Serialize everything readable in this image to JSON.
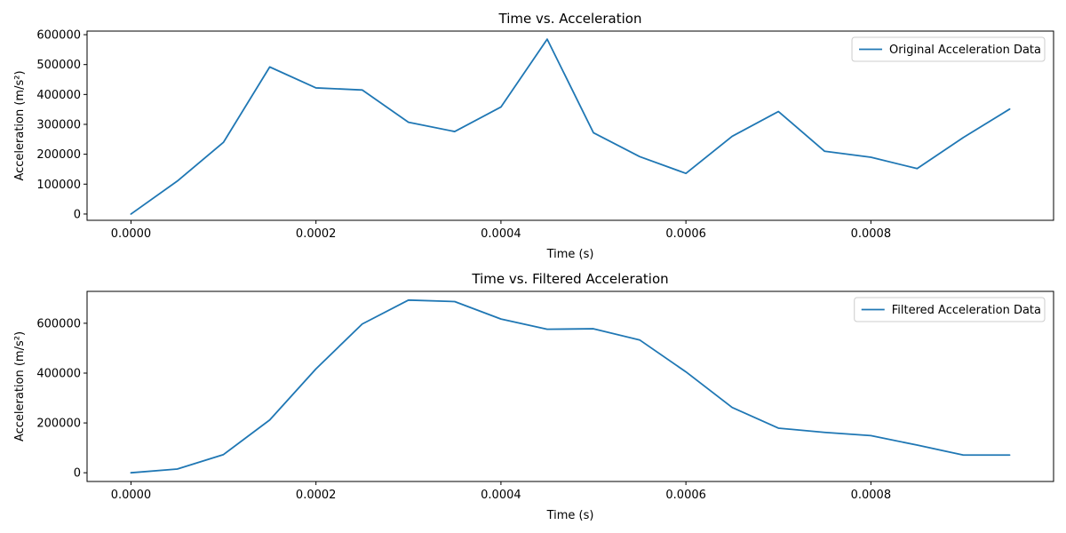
{
  "chart_data": [
    {
      "type": "line",
      "title": "Time vs. Acceleration",
      "xlabel": "Time (s)",
      "ylabel": "Acceleration (m/s²)",
      "xlim": [
        -4.75e-05,
        0.0009975
      ],
      "ylim": [
        -21000,
        612000
      ],
      "xticks": [
        0.0,
        0.0002,
        0.0004,
        0.0006,
        0.0008
      ],
      "xtick_labels": [
        "0.0000",
        "0.0002",
        "0.0004",
        "0.0006",
        "0.0008"
      ],
      "yticks": [
        0,
        100000,
        200000,
        300000,
        400000,
        500000,
        600000
      ],
      "ytick_labels": [
        "0",
        "100000",
        "200000",
        "300000",
        "400000",
        "500000",
        "600000"
      ],
      "legend_position": "top-right",
      "grid": false,
      "series": [
        {
          "name": "Original Acceleration Data",
          "color": "#1f77b4",
          "x": [
            0.0,
            5e-05,
            0.0001,
            0.00015,
            0.0002,
            0.00025,
            0.0003,
            0.00035,
            0.0004,
            0.00045,
            0.0005,
            0.00055,
            0.0006,
            0.00065,
            0.0007,
            0.00075,
            0.0008,
            0.00085,
            0.0009,
            0.00095
          ],
          "y": [
            0,
            110000,
            240000,
            492000,
            422000,
            415000,
            307000,
            276000,
            358000,
            585000,
            272000,
            192000,
            136000,
            260000,
            343000,
            210000,
            190000,
            152000,
            256000,
            351000
          ]
        }
      ]
    },
    {
      "type": "line",
      "title": "Time vs. Filtered Acceleration",
      "xlabel": "Time (s)",
      "ylabel": "Acceleration (m/s²)",
      "xlim": [
        -4.75e-05,
        0.0009975
      ],
      "ylim": [
        -35000,
        728000
      ],
      "xticks": [
        0.0,
        0.0002,
        0.0004,
        0.0006,
        0.0008
      ],
      "xtick_labels": [
        "0.0000",
        "0.0002",
        "0.0004",
        "0.0006",
        "0.0008"
      ],
      "yticks": [
        0,
        200000,
        400000,
        600000
      ],
      "ytick_labels": [
        "0",
        "200000",
        "400000",
        "600000"
      ],
      "legend_position": "top-right",
      "grid": false,
      "series": [
        {
          "name": "Filtered Acceleration Data",
          "color": "#1f77b4",
          "x": [
            0.0,
            5e-05,
            0.0001,
            0.00015,
            0.0002,
            0.00025,
            0.0003,
            0.00035,
            0.0004,
            0.00045,
            0.0005,
            0.00055,
            0.0006,
            0.00065,
            0.0007,
            0.00075,
            0.0008,
            0.00085,
            0.0009,
            0.00095
          ],
          "y": [
            0,
            15000,
            73000,
            212000,
            417000,
            597000,
            693000,
            687000,
            617000,
            576000,
            578000,
            533000,
            405000,
            262000,
            179000,
            162000,
            149000,
            111000,
            71000,
            71000
          ]
        }
      ]
    }
  ]
}
